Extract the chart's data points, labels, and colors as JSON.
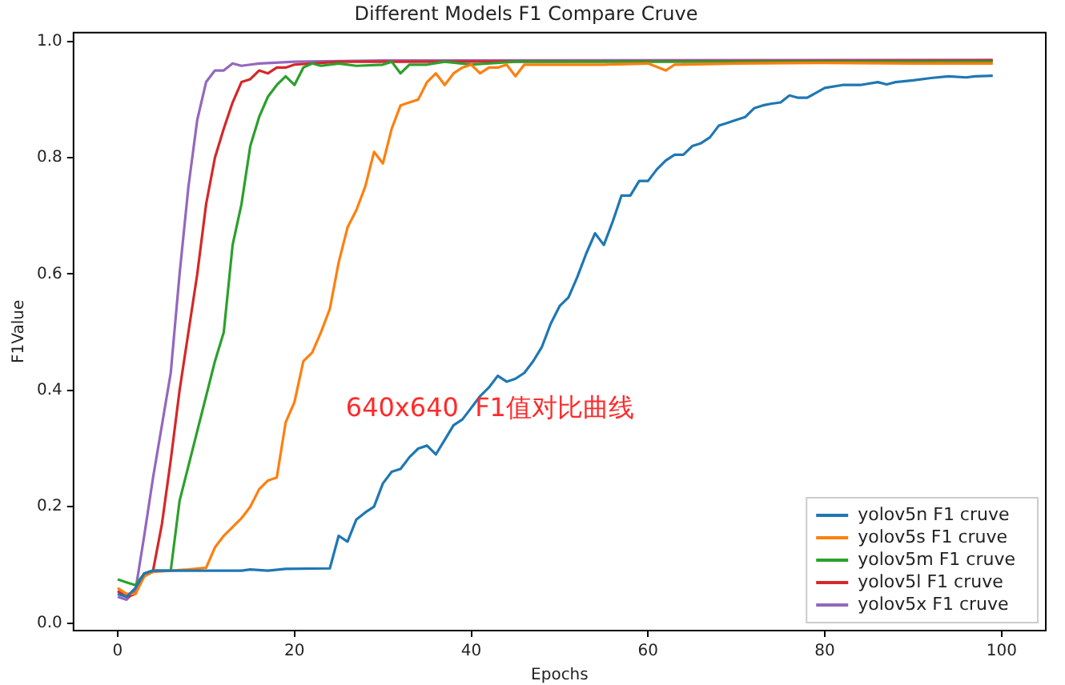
{
  "chart_data": {
    "type": "line",
    "title": "Different Models F1 Compare Cruve",
    "xlabel": "Epochs",
    "ylabel": "F1Value",
    "annotations": [
      "640x640  F1值对比曲线"
    ],
    "xlim": [
      -5,
      105
    ],
    "xticks": [
      0,
      20,
      40,
      60,
      80,
      100
    ],
    "ylim": [
      -0.013,
      1.015
    ],
    "yticks": [
      {
        "value": 0,
        "label": "0.0"
      },
      {
        "value": 0.2,
        "label": "0.2"
      },
      {
        "value": 0.4,
        "label": "0.4"
      },
      {
        "value": 0.6,
        "label": "0.6"
      },
      {
        "value": 0.8,
        "label": "0.8"
      },
      {
        "value": 1,
        "label": "1.0"
      }
    ],
    "grid": false,
    "legend": "bottom right",
    "marker": "none",
    "line_style": "solid",
    "series": [
      {
        "name": "yolov5n F1 cruve",
        "color": "#1f77b4",
        "x": [
          0,
          1,
          2,
          3,
          4,
          6,
          10,
          14,
          15,
          17,
          19,
          24,
          25,
          26,
          27,
          28,
          29,
          30,
          31,
          32,
          33,
          34,
          35,
          36,
          37,
          38,
          39,
          40,
          41,
          42,
          43,
          44,
          45,
          46,
          47,
          48,
          49,
          50,
          51,
          52,
          53,
          54,
          55,
          56,
          57,
          58,
          59,
          60,
          61,
          62,
          63,
          64,
          65,
          66,
          67,
          68,
          69,
          70,
          71,
          72,
          73,
          74,
          75,
          76,
          77,
          78,
          80,
          82,
          84,
          86,
          87,
          88,
          90,
          92,
          94,
          96,
          97,
          99
        ],
        "values": [
          0.05,
          0.045,
          0.06,
          0.085,
          0.09,
          0.09,
          0.09,
          0.09,
          0.092,
          0.09,
          0.093,
          0.094,
          0.15,
          0.14,
          0.178,
          0.19,
          0.2,
          0.24,
          0.26,
          0.265,
          0.285,
          0.3,
          0.305,
          0.29,
          0.315,
          0.34,
          0.35,
          0.37,
          0.39,
          0.405,
          0.425,
          0.415,
          0.42,
          0.43,
          0.45,
          0.475,
          0.515,
          0.545,
          0.56,
          0.595,
          0.635,
          0.67,
          0.65,
          0.69,
          0.735,
          0.735,
          0.76,
          0.76,
          0.78,
          0.795,
          0.805,
          0.805,
          0.82,
          0.825,
          0.835,
          0.855,
          0.86,
          0.865,
          0.87,
          0.885,
          0.89,
          0.893,
          0.895,
          0.907,
          0.903,
          0.903,
          0.92,
          0.925,
          0.925,
          0.93,
          0.926,
          0.93,
          0.933,
          0.937,
          0.94,
          0.938,
          0.94,
          0.941
        ]
      },
      {
        "name": "yolov5s F1 cruve",
        "color": "#ff7f0e",
        "x": [
          0,
          1,
          2,
          3,
          4,
          6,
          8,
          10,
          11,
          12,
          13,
          14,
          15,
          16,
          17,
          18,
          19,
          20,
          21,
          22,
          23,
          24,
          25,
          26,
          27,
          28,
          29,
          30,
          31,
          32,
          33,
          34,
          35,
          36,
          37,
          38,
          39,
          40,
          41,
          42,
          43,
          44,
          45,
          46,
          48,
          50,
          55,
          60,
          62,
          63,
          70,
          80,
          90,
          99
        ],
        "values": [
          0.06,
          0.05,
          0.05,
          0.08,
          0.088,
          0.09,
          0.092,
          0.095,
          0.13,
          0.15,
          0.165,
          0.18,
          0.2,
          0.23,
          0.245,
          0.25,
          0.345,
          0.38,
          0.45,
          0.465,
          0.5,
          0.54,
          0.62,
          0.68,
          0.71,
          0.75,
          0.81,
          0.79,
          0.85,
          0.89,
          0.895,
          0.9,
          0.93,
          0.945,
          0.925,
          0.945,
          0.955,
          0.96,
          0.945,
          0.955,
          0.955,
          0.96,
          0.94,
          0.96,
          0.96,
          0.96,
          0.96,
          0.962,
          0.95,
          0.96,
          0.962,
          0.963,
          0.962,
          0.962
        ]
      },
      {
        "name": "yolov5m F1 cruve",
        "color": "#2ca02c",
        "x": [
          0,
          1,
          2,
          3,
          4,
          6,
          7,
          8,
          9,
          10,
          11,
          12,
          13,
          14,
          15,
          16,
          17,
          18,
          19,
          20,
          21,
          22,
          23,
          25,
          27,
          30,
          31,
          32,
          33,
          35,
          37,
          40,
          45,
          50,
          99
        ],
        "values": [
          0.075,
          0.07,
          0.065,
          0.085,
          0.09,
          0.09,
          0.21,
          0.27,
          0.33,
          0.39,
          0.45,
          0.5,
          0.65,
          0.72,
          0.82,
          0.87,
          0.905,
          0.925,
          0.94,
          0.925,
          0.955,
          0.962,
          0.958,
          0.962,
          0.958,
          0.96,
          0.965,
          0.945,
          0.96,
          0.96,
          0.965,
          0.96,
          0.965,
          0.965,
          0.965
        ]
      },
      {
        "name": "yolov5l F1 cruve",
        "color": "#d62728",
        "x": [
          0,
          1,
          2,
          3,
          4,
          5,
          6,
          7,
          8,
          9,
          10,
          11,
          12,
          13,
          14,
          15,
          16,
          17,
          18,
          19,
          20,
          22,
          25,
          30,
          99
        ],
        "values": [
          0.055,
          0.045,
          0.05,
          0.085,
          0.09,
          0.17,
          0.28,
          0.4,
          0.5,
          0.6,
          0.72,
          0.8,
          0.85,
          0.895,
          0.93,
          0.935,
          0.95,
          0.945,
          0.955,
          0.955,
          0.96,
          0.962,
          0.965,
          0.965,
          0.967
        ]
      },
      {
        "name": "yolov5x F1 cruve",
        "color": "#9467bd",
        "x": [
          0,
          1,
          2,
          3,
          4,
          5,
          6,
          7,
          8,
          9,
          10,
          11,
          12,
          13,
          14,
          15,
          16,
          20,
          30,
          99
        ],
        "values": [
          0.045,
          0.04,
          0.055,
          0.15,
          0.25,
          0.34,
          0.43,
          0.6,
          0.75,
          0.865,
          0.93,
          0.95,
          0.95,
          0.962,
          0.958,
          0.96,
          0.962,
          0.965,
          0.967,
          0.968
        ]
      }
    ]
  }
}
